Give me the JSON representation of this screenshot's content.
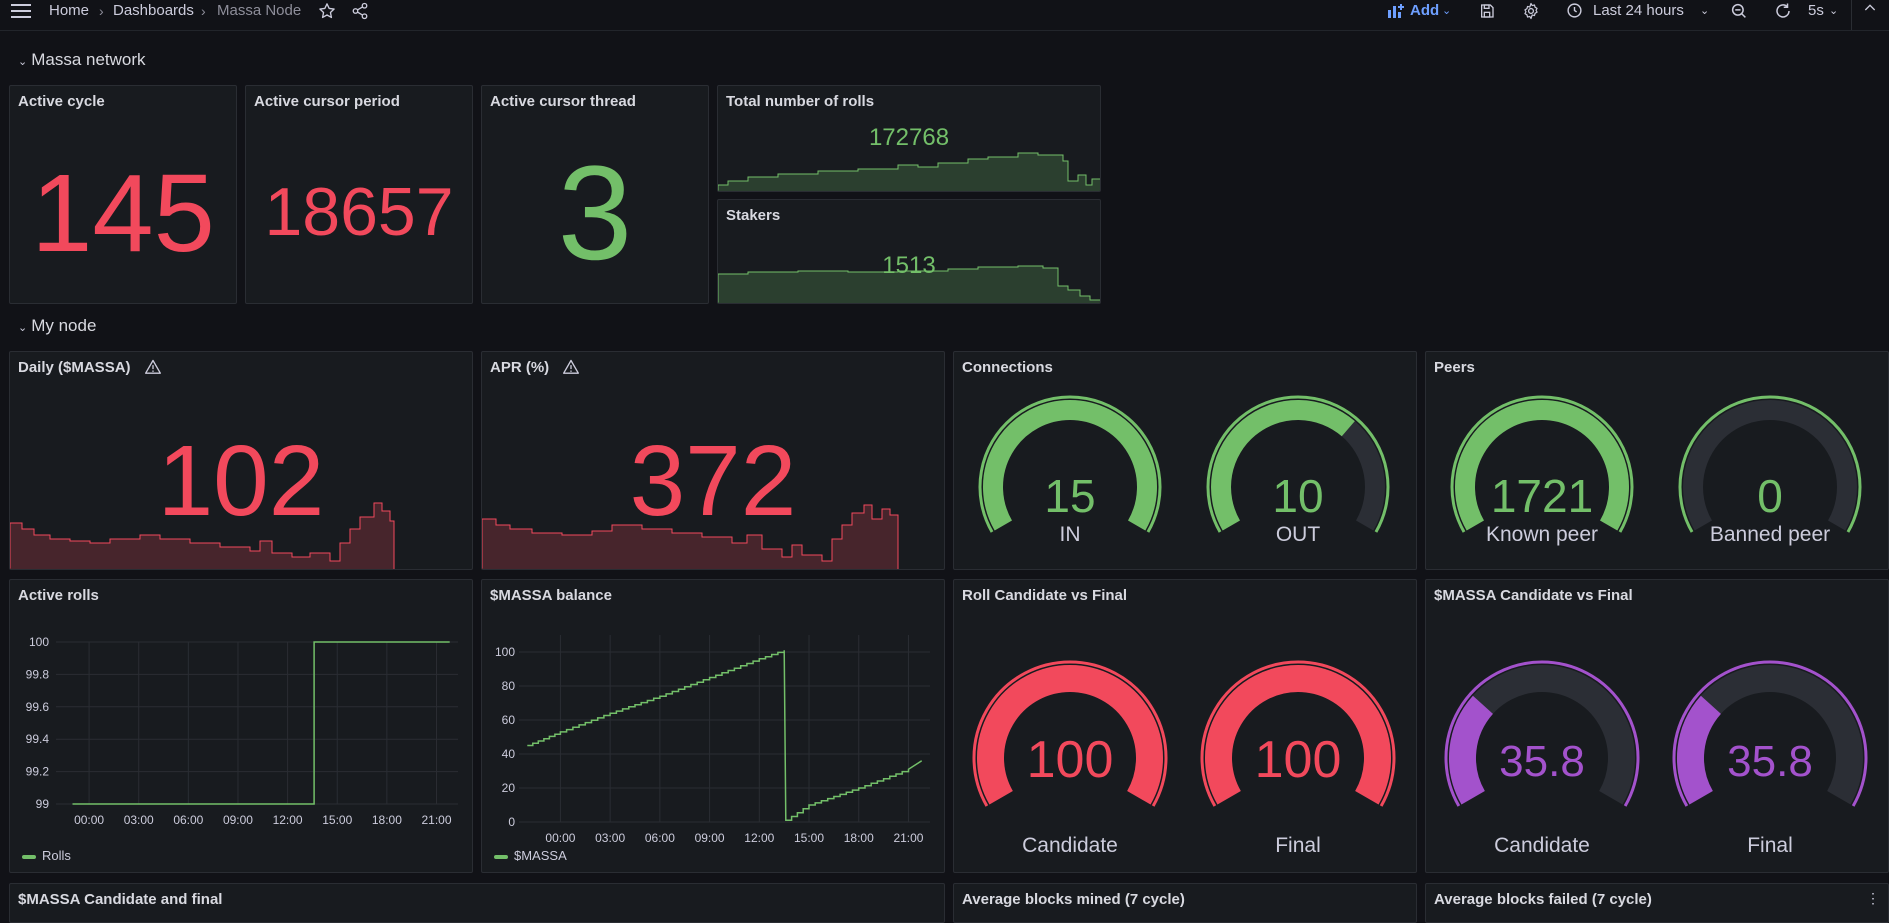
{
  "breadcrumb": {
    "home": "Home",
    "dashboards": "Dashboards",
    "current": "Massa Node"
  },
  "toolbar": {
    "add_label": "Add",
    "time_range": "Last 24 hours",
    "refresh_interval": "5s"
  },
  "colors": {
    "red": "#f2495c",
    "green": "#73bf69",
    "purple": "#a352cc",
    "blue": "#6e9fff"
  },
  "sections": {
    "network": "Massa network",
    "node": "My node"
  },
  "panels": {
    "active_cycle": {
      "title": "Active cycle",
      "value": "145"
    },
    "active_cursor_period": {
      "title": "Active cursor period",
      "value": "18657"
    },
    "active_cursor_thread": {
      "title": "Active cursor thread",
      "value": "3"
    },
    "total_rolls": {
      "title": "Total number of rolls",
      "value": "172768"
    },
    "stakers": {
      "title": "Stakers",
      "value": "1513"
    },
    "daily": {
      "title": "Daily ($MASSA)",
      "value": "102"
    },
    "apr": {
      "title": "APR (%)",
      "value": "372"
    },
    "connections": {
      "title": "Connections",
      "gauges": [
        {
          "value": "15",
          "label": "IN",
          "fraction": 1.0
        },
        {
          "value": "10",
          "label": "OUT",
          "fraction": 0.67
        }
      ]
    },
    "peers": {
      "title": "Peers",
      "gauges": [
        {
          "value": "1721",
          "label": "Known peer",
          "fraction": 1.0
        },
        {
          "value": "0",
          "label": "Banned peer",
          "fraction": 0.0
        }
      ]
    },
    "active_rolls": {
      "title": "Active rolls",
      "legend": "Rolls"
    },
    "massa_balance": {
      "title": "$MASSA balance",
      "legend": "$MASSA"
    },
    "roll_candidate_final": {
      "title": "Roll Candidate vs Final",
      "gauges": [
        {
          "value": "100",
          "label": "Candidate",
          "fraction": 1.0
        },
        {
          "value": "100",
          "label": "Final",
          "fraction": 1.0
        }
      ]
    },
    "massa_candidate_final": {
      "title": "$MASSA Candidate vs Final",
      "gauges": [
        {
          "value": "35.8",
          "label": "Candidate",
          "fraction": 0.3
        },
        {
          "value": "35.8",
          "label": "Final",
          "fraction": 0.3
        }
      ]
    },
    "massa_candidate_and_final": {
      "title": "$MASSA Candidate and final"
    },
    "avg_blocks_mined": {
      "title": "Average blocks mined (7 cycle)"
    },
    "avg_blocks_failed": {
      "title": "Average blocks failed (7 cycle)"
    }
  },
  "chart_data": [
    {
      "type": "line",
      "title": "Active rolls",
      "x_ticks": [
        "00:00",
        "03:00",
        "06:00",
        "09:00",
        "12:00",
        "15:00",
        "18:00",
        "21:00"
      ],
      "y_ticks": [
        "99",
        "99.2",
        "99.4",
        "99.6",
        "99.8",
        "100"
      ],
      "ylim": [
        99,
        100
      ],
      "series": [
        {
          "name": "Rolls",
          "x_hours": [
            -1,
            13.6,
            13.6,
            21.8
          ],
          "values": [
            99,
            99,
            100,
            100
          ]
        }
      ]
    },
    {
      "type": "line",
      "title": "$MASSA balance",
      "x_ticks": [
        "00:00",
        "03:00",
        "06:00",
        "09:00",
        "12:00",
        "15:00",
        "18:00",
        "21:00"
      ],
      "y_ticks": [
        "0",
        "20",
        "40",
        "60",
        "80",
        "100"
      ],
      "ylim": [
        0,
        110
      ],
      "series": [
        {
          "name": "$MASSA",
          "x_hours": [
            -2,
            0,
            3,
            6,
            9,
            12,
            13.5,
            13.6,
            15,
            18,
            21,
            21.8
          ],
          "values": [
            45,
            53,
            64,
            74,
            85,
            96,
            101,
            1,
            10,
            20,
            31,
            36
          ]
        }
      ]
    }
  ]
}
